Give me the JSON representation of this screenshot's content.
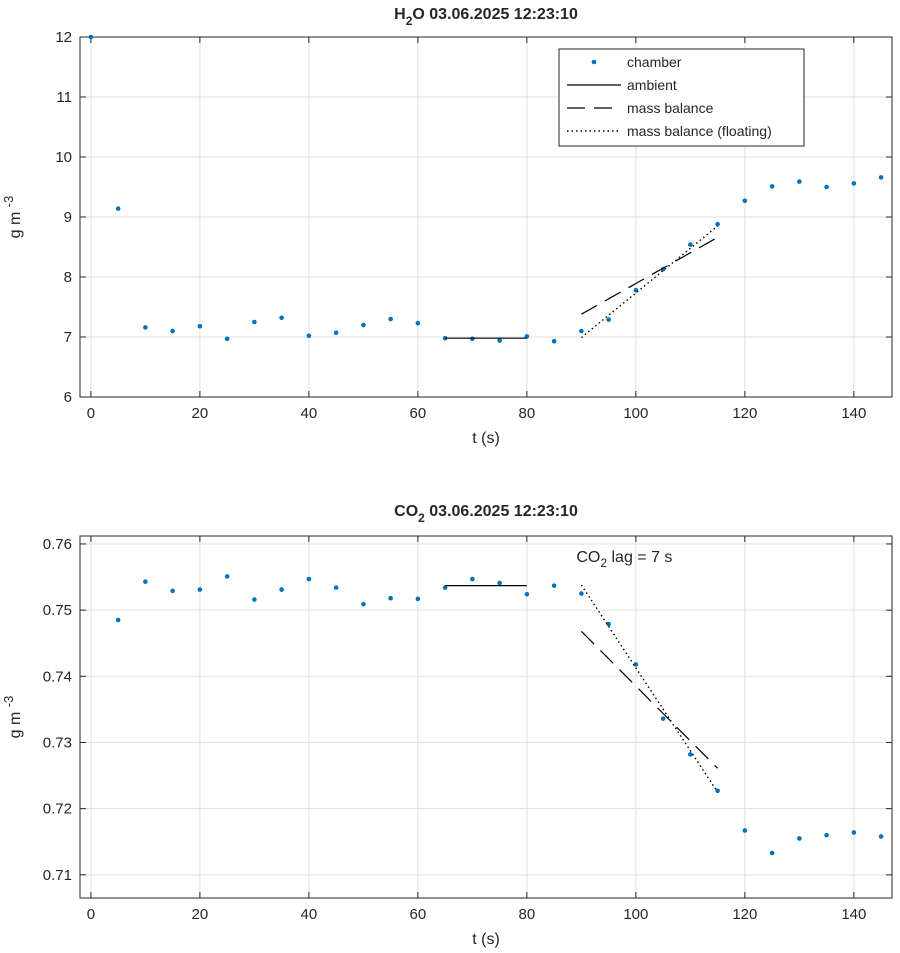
{
  "chart_data": [
    {
      "type": "scatter",
      "title": {
        "pre": "H",
        "sub": "2",
        "post": "O  03.06.2025 12:23:10"
      },
      "xlabel": "t (s)",
      "ylabel": {
        "base": "g m",
        "sup": "-3"
      },
      "xlim": [
        -2,
        147
      ],
      "ylim": [
        6,
        12
      ],
      "xticks": [
        0,
        20,
        40,
        60,
        80,
        100,
        120,
        140
      ],
      "yticks": [
        6,
        7,
        8,
        9,
        10,
        11,
        12
      ],
      "ytick_decimals": 0,
      "grid": true,
      "legend": {
        "position": "top-right",
        "entries": [
          {
            "label": "chamber",
            "style": "dot"
          },
          {
            "label": "ambient",
            "style": "solid"
          },
          {
            "label": "mass balance",
            "style": "dashed"
          },
          {
            "label": "mass balance (floating)",
            "style": "dotted"
          }
        ]
      },
      "series": [
        {
          "name": "chamber",
          "style": "dot",
          "color": "#0072BD",
          "x": [
            0,
            5,
            10,
            15,
            20,
            25,
            30,
            35,
            40,
            45,
            50,
            55,
            60,
            65,
            70,
            75,
            80,
            85,
            90,
            95,
            100,
            105,
            110,
            115,
            120,
            125,
            130,
            135,
            140,
            145
          ],
          "y": [
            12.0,
            9.14,
            7.16,
            7.1,
            7.18,
            6.97,
            7.25,
            7.32,
            7.02,
            7.07,
            7.2,
            7.3,
            7.23,
            6.98,
            6.97,
            6.94,
            7.01,
            6.93,
            7.1,
            7.29,
            7.78,
            8.13,
            8.54,
            8.88,
            9.27,
            9.51,
            9.59,
            9.5,
            9.56,
            9.66
          ]
        },
        {
          "name": "ambient",
          "style": "solid",
          "color": "#000000",
          "x": [
            65,
            80
          ],
          "y": [
            6.98,
            6.98
          ]
        },
        {
          "name": "mass balance",
          "style": "dashed",
          "color": "#000000",
          "x": [
            90,
            115
          ],
          "y": [
            7.38,
            8.66
          ]
        },
        {
          "name": "mass balance (floating)",
          "style": "dotted",
          "color": "#000000",
          "x": [
            90,
            115
          ],
          "y": [
            6.99,
            8.85
          ]
        }
      ]
    },
    {
      "type": "scatter",
      "title": {
        "pre": "CO",
        "sub": "2",
        "post": "  03.06.2025 12:23:10"
      },
      "xlabel": "t (s)",
      "ylabel": {
        "base": "g m",
        "sup": "-3"
      },
      "xlim": [
        -2,
        147
      ],
      "ylim": [
        0.7065,
        0.7612
      ],
      "xticks": [
        0,
        20,
        40,
        60,
        80,
        100,
        120,
        140
      ],
      "yticks": [
        0.71,
        0.72,
        0.73,
        0.74,
        0.75,
        0.76
      ],
      "ytick_decimals": 2,
      "grid": true,
      "annotation": {
        "pre": "CO",
        "sub": "2",
        "post": " lag = 7 s",
        "x": 90,
        "y": 0.7573
      },
      "series": [
        {
          "name": "chamber",
          "style": "dot",
          "color": "#0072BD",
          "x": [
            5,
            10,
            15,
            20,
            25,
            30,
            35,
            40,
            45,
            50,
            55,
            60,
            65,
            70,
            75,
            80,
            85,
            90,
            95,
            100,
            105,
            110,
            115,
            120,
            125,
            130,
            135,
            140,
            145
          ],
          "y": [
            0.7485,
            0.7543,
            0.7529,
            0.7531,
            0.7551,
            0.7516,
            0.7531,
            0.7547,
            0.7534,
            0.7509,
            0.7518,
            0.7517,
            0.7534,
            0.7547,
            0.7541,
            0.7524,
            0.7537,
            0.7525,
            0.7479,
            0.7418,
            0.7336,
            0.7282,
            0.7227,
            0.7167,
            0.7133,
            0.7155,
            0.716,
            0.7164,
            0.7158
          ]
        },
        {
          "name": "ambient",
          "style": "solid",
          "color": "#000000",
          "x": [
            65,
            80
          ],
          "y": [
            0.7537,
            0.7537
          ]
        },
        {
          "name": "mass balance",
          "style": "dashed",
          "color": "#000000",
          "x": [
            90,
            115
          ],
          "y": [
            0.7468,
            0.7261
          ]
        },
        {
          "name": "mass balance (floating)",
          "style": "dotted",
          "color": "#000000",
          "x": [
            90,
            115
          ],
          "y": [
            0.7538,
            0.7225
          ]
        }
      ]
    }
  ]
}
